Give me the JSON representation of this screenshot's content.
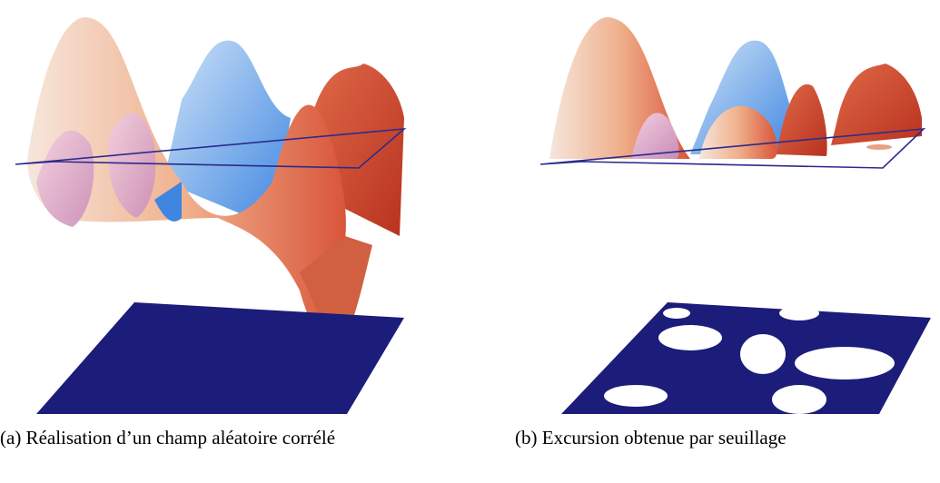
{
  "figures": [
    {
      "caption": "(a) Réalisation d’un champ aléatoire corrélé"
    },
    {
      "caption": "(b) Excursion obtenue par seuillage"
    }
  ]
}
